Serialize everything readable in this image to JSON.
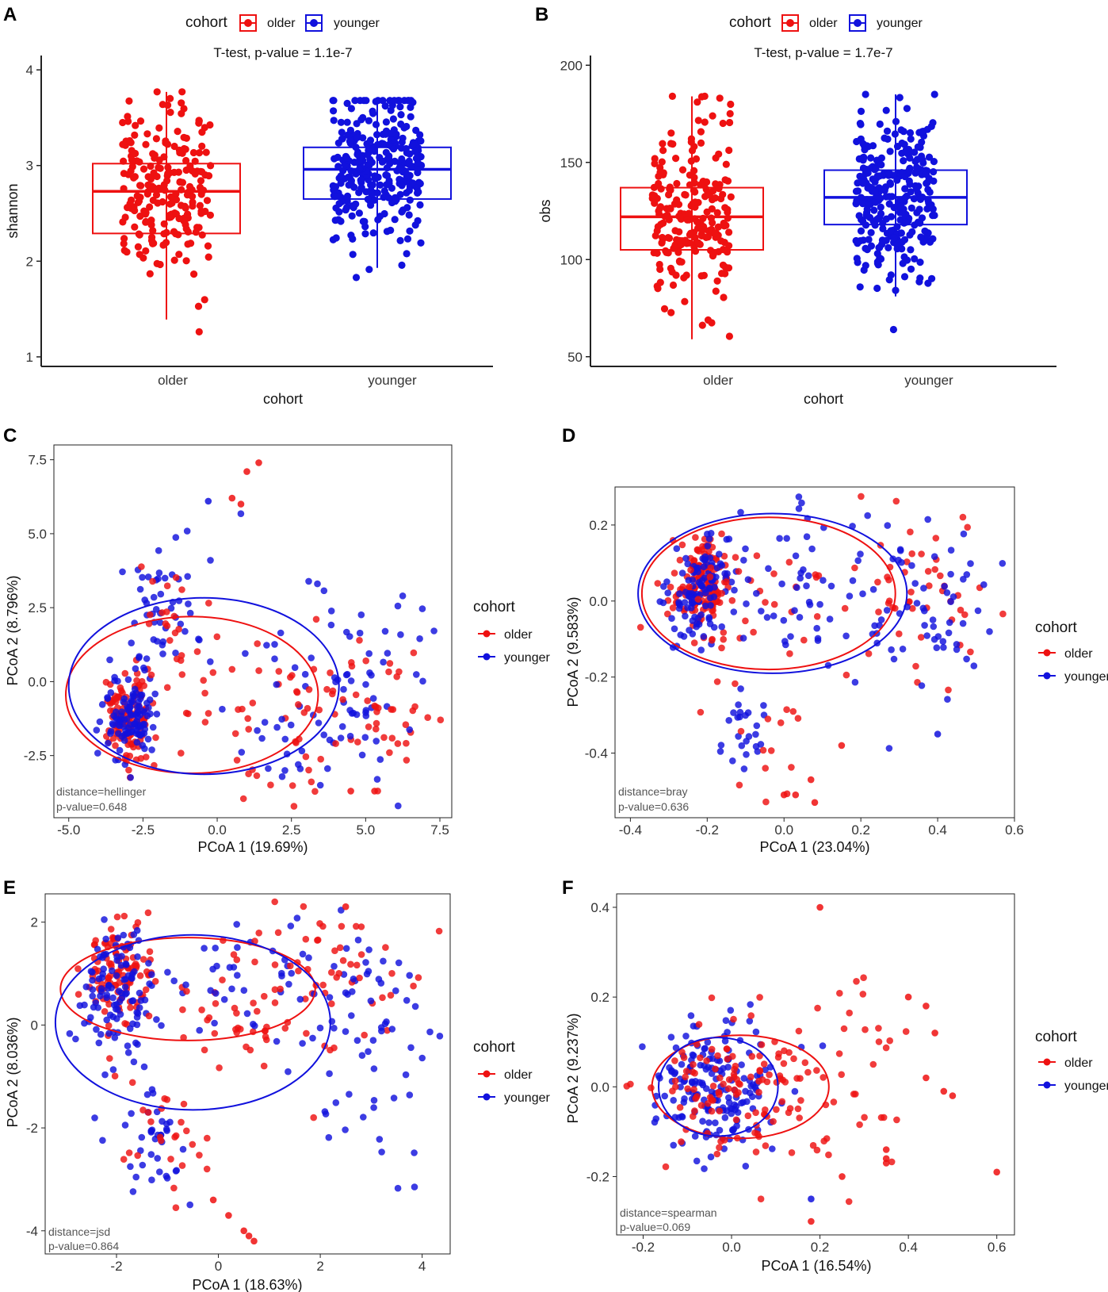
{
  "colors": {
    "older": "#ee1111",
    "younger": "#1111dd"
  },
  "chart_data": [
    {
      "id": "A",
      "type": "box+jitter",
      "panel_letter": "A",
      "subtitle": "T-test, p-value = 1.1e-7",
      "xlabel": "cohort",
      "ylabel": "shannon",
      "categories": [
        "older",
        "younger"
      ],
      "yticks": [
        1,
        2,
        3,
        4
      ],
      "ylim": [
        0.9,
        4.15
      ],
      "legend": {
        "title": "cohort",
        "labels": [
          "older",
          "younger"
        ],
        "position": "top"
      },
      "boxes": [
        {
          "name": "older",
          "q1": 2.29,
          "median": 2.73,
          "q3": 3.02,
          "whisker_low": 1.39,
          "whisker_high": 3.77,
          "n": 220,
          "spread": 0.46
        },
        {
          "name": "younger",
          "q1": 2.65,
          "median": 2.96,
          "q3": 3.19,
          "whisker_low": 1.93,
          "whisker_high": 3.68,
          "n": 300,
          "spread": 0.4
        }
      ]
    },
    {
      "id": "B",
      "type": "box+jitter",
      "panel_letter": "B",
      "subtitle": "T-test, p-value = 1.7e-7",
      "xlabel": "cohort",
      "ylabel": "obs",
      "categories": [
        "older",
        "younger"
      ],
      "yticks": [
        50,
        100,
        150,
        200
      ],
      "ylim": [
        45,
        205
      ],
      "legend": {
        "title": "cohort",
        "labels": [
          "older",
          "younger"
        ],
        "position": "top"
      },
      "boxes": [
        {
          "name": "older",
          "q1": 105,
          "median": 122,
          "q3": 137,
          "whisker_low": 59,
          "whisker_high": 184,
          "n": 220,
          "spread": 24
        },
        {
          "name": "younger",
          "q1": 118,
          "median": 132,
          "q3": 146,
          "whisker_low": 81,
          "whisker_high": 185,
          "n": 300,
          "spread": 22
        }
      ]
    },
    {
      "id": "C",
      "type": "scatter",
      "panel_letter": "C",
      "xlabel": "PCoA 1 (19.69%)",
      "ylabel": "PCoA 2 (8.796%)",
      "xticks": [
        -5.0,
        -2.5,
        0.0,
        2.5,
        5.0,
        7.5
      ],
      "yticks": [
        -2.5,
        0.0,
        2.5,
        5.0,
        7.5
      ],
      "tick_decimals": 1,
      "xlim": [
        -5.5,
        7.9
      ],
      "ylim": [
        -4.6,
        8.0
      ],
      "note": [
        "distance=hellinger",
        "p-value=0.648"
      ],
      "legend": {
        "title": "cohort",
        "labels": [
          "older",
          "younger"
        ],
        "position": "right"
      },
      "ellipses": [
        {
          "group": "older",
          "cx": -0.85,
          "cy": -0.45,
          "rx": 4.25,
          "ry": 2.65
        },
        {
          "group": "younger",
          "cx": -0.45,
          "cy": -0.15,
          "rx": 4.55,
          "ry": 2.98
        }
      ],
      "clusters": [
        {
          "group": "older",
          "n": 120,
          "cx": -3.0,
          "cy": -1.2,
          "sx": 0.4,
          "sy": 0.7
        },
        {
          "group": "younger",
          "n": 110,
          "cx": -3.0,
          "cy": -1.0,
          "sx": 0.45,
          "sy": 0.9
        },
        {
          "group": "younger",
          "n": 50,
          "cx": -1.8,
          "cy": 2.5,
          "sx": 0.6,
          "sy": 1.5
        },
        {
          "group": "older",
          "n": 25,
          "cx": -1.6,
          "cy": 2.0,
          "sx": 0.6,
          "sy": 1.3
        },
        {
          "group": "older",
          "n": 60,
          "cx": 2.5,
          "cy": -1.2,
          "sx": 2.0,
          "sy": 1.4
        },
        {
          "group": "younger",
          "n": 90,
          "cx": 4.0,
          "cy": -0.3,
          "sx": 1.7,
          "sy": 2.0
        },
        {
          "group": "older",
          "n": 30,
          "cx": 5.0,
          "cy": -1.5,
          "sx": 1.2,
          "sy": 1.5
        }
      ],
      "extra_points": [
        {
          "group": "older",
          "x": 1.0,
          "y": 7.1
        },
        {
          "group": "older",
          "x": 1.4,
          "y": 7.4
        },
        {
          "group": "older",
          "x": 0.8,
          "y": 6.0
        },
        {
          "group": "younger",
          "x": -0.3,
          "y": 6.1
        },
        {
          "group": "older",
          "x": 0.5,
          "y": 6.2
        },
        {
          "group": "older",
          "x": 4.5,
          "y": -3.7
        },
        {
          "group": "older",
          "x": 5.3,
          "y": -3.7
        }
      ]
    },
    {
      "id": "D",
      "type": "scatter",
      "panel_letter": "D",
      "xlabel": "PCoA 1 (23.04%)",
      "ylabel": "PCoA 2 (9.583%)",
      "xticks": [
        -0.4,
        -0.2,
        0.0,
        0.2,
        0.4,
        0.6
      ],
      "yticks": [
        -0.4,
        -0.2,
        0.0,
        0.2
      ],
      "tick_decimals": 1,
      "xlim": [
        -0.44,
        0.6
      ],
      "ylim": [
        -0.57,
        0.3
      ],
      "note": [
        "distance=bray",
        "p-value=0.636"
      ],
      "legend": {
        "title": "cohort",
        "labels": [
          "older",
          "younger"
        ],
        "position": "right"
      },
      "ellipses": [
        {
          "group": "older",
          "cx": -0.04,
          "cy": 0.02,
          "rx": 0.33,
          "ry": 0.2
        },
        {
          "group": "younger",
          "cx": -0.03,
          "cy": 0.02,
          "rx": 0.35,
          "ry": 0.21
        }
      ],
      "clusters": [
        {
          "group": "older",
          "n": 140,
          "cx": -0.21,
          "cy": 0.05,
          "sx": 0.04,
          "sy": 0.06
        },
        {
          "group": "younger",
          "n": 110,
          "cx": -0.22,
          "cy": 0.04,
          "sx": 0.04,
          "sy": 0.07
        },
        {
          "group": "older",
          "n": 35,
          "cx": -0.05,
          "cy": -0.02,
          "sx": 0.12,
          "sy": 0.12
        },
        {
          "group": "younger",
          "n": 60,
          "cx": 0.05,
          "cy": 0.03,
          "sx": 0.14,
          "sy": 0.1
        },
        {
          "group": "older",
          "n": 50,
          "cx": 0.35,
          "cy": 0.06,
          "sx": 0.09,
          "sy": 0.13
        },
        {
          "group": "younger",
          "n": 60,
          "cx": 0.38,
          "cy": -0.02,
          "sx": 0.1,
          "sy": 0.15
        },
        {
          "group": "younger",
          "n": 25,
          "cx": -0.1,
          "cy": -0.32,
          "sx": 0.04,
          "sy": 0.07
        },
        {
          "group": "older",
          "n": 15,
          "cx": -0.05,
          "cy": -0.35,
          "sx": 0.06,
          "sy": 0.1
        }
      ],
      "extra_points": [
        {
          "group": "older",
          "x": 0.08,
          "y": -0.53
        },
        {
          "group": "older",
          "x": 0.03,
          "y": -0.51
        },
        {
          "group": "older",
          "x": 0.0,
          "y": -0.51
        },
        {
          "group": "older",
          "x": 0.07,
          "y": -0.47
        },
        {
          "group": "older",
          "x": 0.15,
          "y": -0.38
        },
        {
          "group": "younger",
          "x": 0.4,
          "y": -0.35
        }
      ]
    },
    {
      "id": "E",
      "type": "scatter",
      "panel_letter": "E",
      "xlabel": "PCoA 1 (18.63%)",
      "ylabel": "PCoA 2 (8.036%)",
      "xticks": [
        -2,
        0,
        2,
        4
      ],
      "yticks": [
        -4,
        -2,
        0,
        2
      ],
      "tick_decimals": 0,
      "xlim": [
        -3.4,
        4.55
      ],
      "ylim": [
        -4.45,
        2.55
      ],
      "note": [
        "distance=jsd",
        "p-value=0.864"
      ],
      "legend": {
        "title": "cohort",
        "labels": [
          "older",
          "younger"
        ],
        "position": "right"
      },
      "ellipses": [
        {
          "group": "older",
          "cx": -0.6,
          "cy": 0.7,
          "rx": 2.5,
          "ry": 1.0
        },
        {
          "group": "younger",
          "cx": -0.5,
          "cy": 0.05,
          "rx": 2.7,
          "ry": 1.7
        }
      ],
      "clusters": [
        {
          "group": "older",
          "n": 110,
          "cx": -2.0,
          "cy": 1.0,
          "sx": 0.35,
          "sy": 0.55
        },
        {
          "group": "younger",
          "n": 110,
          "cx": -2.0,
          "cy": 0.7,
          "sx": 0.4,
          "sy": 0.6
        },
        {
          "group": "older",
          "n": 50,
          "cx": 0.5,
          "cy": 0.5,
          "sx": 1.1,
          "sy": 0.8
        },
        {
          "group": "younger",
          "n": 60,
          "cx": 1.2,
          "cy": 0.9,
          "sx": 1.2,
          "sy": 0.8
        },
        {
          "group": "older",
          "n": 45,
          "cx": 2.5,
          "cy": 1.2,
          "sx": 0.9,
          "sy": 0.6
        },
        {
          "group": "younger",
          "n": 50,
          "cx": 3.0,
          "cy": -0.8,
          "sx": 0.8,
          "sy": 1.2
        },
        {
          "group": "younger",
          "n": 40,
          "cx": -1.3,
          "cy": -2.4,
          "sx": 0.35,
          "sy": 0.6
        },
        {
          "group": "older",
          "n": 25,
          "cx": -1.0,
          "cy": -2.2,
          "sx": 0.5,
          "sy": 0.8
        }
      ],
      "extra_points": [
        {
          "group": "older",
          "x": 0.5,
          "y": -4.0
        },
        {
          "group": "older",
          "x": 0.6,
          "y": -4.1
        },
        {
          "group": "older",
          "x": 0.7,
          "y": -4.2
        },
        {
          "group": "older",
          "x": 0.2,
          "y": -3.7
        },
        {
          "group": "older",
          "x": -0.1,
          "y": -3.4
        },
        {
          "group": "older",
          "x": 2.5,
          "y": 2.3
        }
      ]
    },
    {
      "id": "F",
      "type": "scatter",
      "panel_letter": "F",
      "xlabel": "PCoA 1 (16.54%)",
      "ylabel": "PCoA 2 (9.237%)",
      "xticks": [
        -0.2,
        0.0,
        0.2,
        0.4,
        0.6
      ],
      "yticks": [
        -0.2,
        0.0,
        0.2,
        0.4
      ],
      "tick_decimals": 1,
      "xlim": [
        -0.26,
        0.64
      ],
      "ylim": [
        -0.33,
        0.43
      ],
      "note": [
        "distance=spearman",
        "p-value=0.069"
      ],
      "legend": {
        "title": "cohort",
        "labels": [
          "older",
          "younger"
        ],
        "position": "right"
      },
      "ellipses": [
        {
          "group": "older",
          "cx": 0.02,
          "cy": 0.0,
          "rx": 0.2,
          "ry": 0.115
        },
        {
          "group": "younger",
          "cx": -0.03,
          "cy": 0.0,
          "rx": 0.135,
          "ry": 0.11
        }
      ],
      "clusters": [
        {
          "group": "younger",
          "n": 180,
          "cx": -0.04,
          "cy": 0.0,
          "sx": 0.07,
          "sy": 0.07
        },
        {
          "group": "older",
          "n": 130,
          "cx": 0.02,
          "cy": 0.0,
          "sx": 0.11,
          "sy": 0.08
        },
        {
          "group": "older",
          "n": 25,
          "cx": 0.3,
          "cy": 0.02,
          "sx": 0.06,
          "sy": 0.1
        }
      ],
      "extra_points": [
        {
          "group": "older",
          "x": 0.2,
          "y": 0.4
        },
        {
          "group": "older",
          "x": 0.4,
          "y": 0.2
        },
        {
          "group": "older",
          "x": 0.44,
          "y": 0.18
        },
        {
          "group": "older",
          "x": 0.46,
          "y": 0.12
        },
        {
          "group": "older",
          "x": 0.44,
          "y": 0.02
        },
        {
          "group": "older",
          "x": 0.48,
          "y": -0.01
        },
        {
          "group": "older",
          "x": 0.5,
          "y": -0.02
        },
        {
          "group": "older",
          "x": 0.6,
          "y": -0.19
        },
        {
          "group": "older",
          "x": 0.35,
          "y": -0.14
        },
        {
          "group": "older",
          "x": 0.35,
          "y": -0.16
        },
        {
          "group": "older",
          "x": 0.35,
          "y": -0.17
        },
        {
          "group": "older",
          "x": 0.18,
          "y": -0.3
        },
        {
          "group": "older",
          "x": 0.25,
          "y": -0.2
        },
        {
          "group": "younger",
          "x": 0.18,
          "y": -0.25
        }
      ]
    }
  ]
}
